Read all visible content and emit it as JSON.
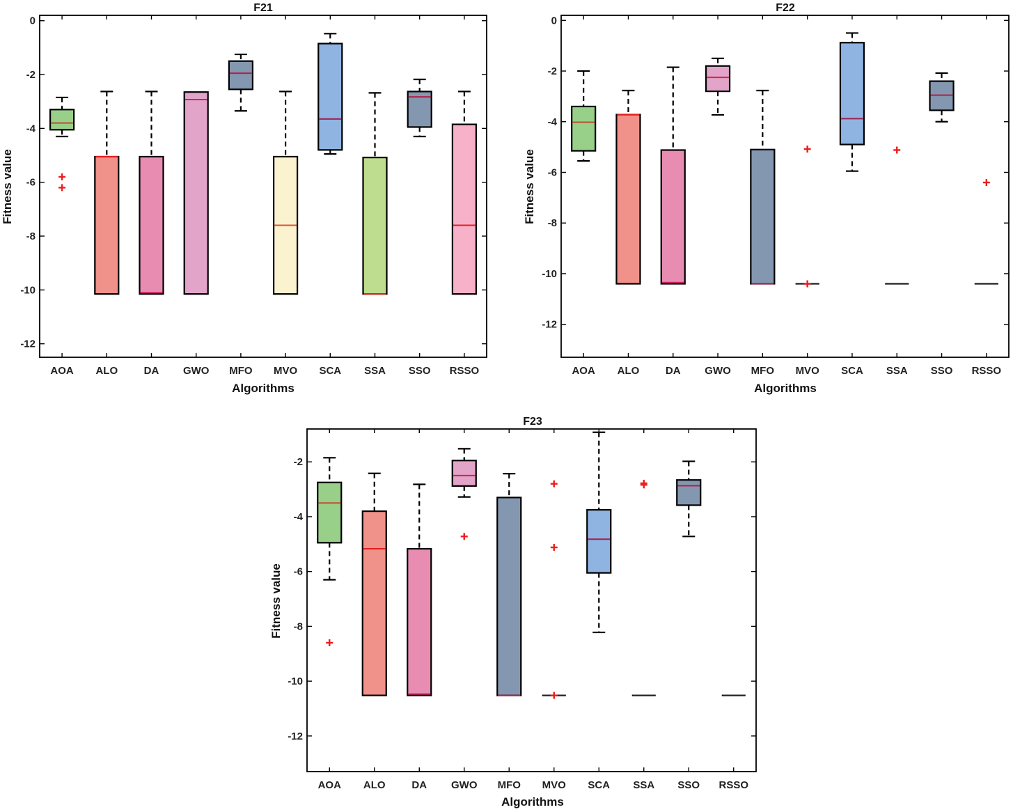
{
  "chart_data": [
    {
      "type": "boxplot",
      "title": "F21",
      "xlabel": "Algorithms",
      "ylabel": "Fitness value",
      "ylim": [
        -12.5,
        0.2
      ],
      "yticks": [
        0,
        -2,
        -4,
        -6,
        -8,
        -10,
        -12
      ],
      "categories": [
        "AOA",
        "ALO",
        "DA",
        "GWO",
        "MFO",
        "MVO",
        "SCA",
        "SSA",
        "SSO",
        "RSSO"
      ],
      "boxes": [
        {
          "whisker_low": -4.3,
          "q1": -4.05,
          "median": -3.8,
          "q3": -3.3,
          "whisker_high": -2.85,
          "outliers": [
            -5.8,
            -6.2
          ],
          "color": "#98d08a",
          "median_color": "#b8522a"
        },
        {
          "whisker_low": -10.15,
          "q1": -10.15,
          "median": -5.05,
          "q3": -5.05,
          "whisker_high": -2.63,
          "outliers": [],
          "color": "#f0918a",
          "median_color": "#e02020"
        },
        {
          "whisker_low": -10.15,
          "q1": -10.15,
          "median": -10.1,
          "q3": -5.05,
          "whisker_high": -2.63,
          "outliers": [],
          "color": "#e98cb2",
          "median_color": "#d0206a"
        },
        {
          "whisker_low": -10.15,
          "q1": -10.15,
          "median": -2.93,
          "q3": -2.65,
          "whisker_high": -2.65,
          "outliers": [],
          "color": "#e2a4c8",
          "median_color": "#e02040"
        },
        {
          "whisker_low": -3.35,
          "q1": -2.55,
          "median": -1.95,
          "q3": -1.5,
          "whisker_high": -1.25,
          "outliers": [],
          "color": "#8497b0",
          "median_color": "#b02048"
        },
        {
          "whisker_low": -10.15,
          "q1": -10.15,
          "median": -7.6,
          "q3": -5.05,
          "whisker_high": -2.63,
          "outliers": [],
          "color": "#fbf3cf",
          "median_color": "#e05030"
        },
        {
          "whisker_low": -4.95,
          "q1": -4.8,
          "median": -3.65,
          "q3": -0.85,
          "whisker_high": -0.48,
          "outliers": [],
          "color": "#8fb4e2",
          "median_color": "#a02050"
        },
        {
          "whisker_low": -10.15,
          "q1": -10.15,
          "median": -10.15,
          "q3": -5.08,
          "whisker_high": -2.68,
          "outliers": [],
          "color": "#bedd8e",
          "median_color": "#e03030"
        },
        {
          "whisker_low": -4.3,
          "q1": -3.95,
          "median": -2.83,
          "q3": -2.63,
          "whisker_high": -2.18,
          "outliers": [],
          "color": "#8497b0",
          "median_color": "#b02048"
        },
        {
          "whisker_low": -10.15,
          "q1": -10.15,
          "median": -7.6,
          "q3": -3.85,
          "whisker_high": -2.63,
          "outliers": [],
          "color": "#f7b1c9",
          "median_color": "#e02020"
        }
      ]
    },
    {
      "type": "boxplot",
      "title": "F22",
      "xlabel": "Algorithms",
      "ylabel": "Fitness value",
      "ylim": [
        -13.3,
        0.2
      ],
      "yticks": [
        0,
        -2,
        -4,
        -6,
        -8,
        -10,
        -12
      ],
      "categories": [
        "AOA",
        "ALO",
        "DA",
        "GWO",
        "MFO",
        "MVO",
        "SCA",
        "SSA",
        "SSO",
        "RSSO"
      ],
      "boxes": [
        {
          "whisker_low": -5.55,
          "q1": -5.15,
          "median": -4.02,
          "q3": -3.4,
          "whisker_high": -2.0,
          "outliers": [],
          "color": "#98d08a",
          "median_color": "#b8522a"
        },
        {
          "whisker_low": -10.4,
          "q1": -10.4,
          "median": -3.72,
          "q3": -3.72,
          "whisker_high": -2.77,
          "outliers": [],
          "color": "#f0918a",
          "median_color": "#e02020"
        },
        {
          "whisker_low": -10.4,
          "q1": -10.4,
          "median": -10.35,
          "q3": -5.12,
          "whisker_high": -1.85,
          "outliers": [],
          "color": "#e98cb2",
          "median_color": "#d0206a"
        },
        {
          "whisker_low": -3.73,
          "q1": -2.8,
          "median": -2.25,
          "q3": -1.8,
          "whisker_high": -1.5,
          "outliers": [],
          "color": "#e2a4c8",
          "median_color": "#e02040"
        },
        {
          "whisker_low": -10.4,
          "q1": -10.4,
          "median": -10.4,
          "q3": -5.1,
          "whisker_high": -2.77,
          "outliers": [],
          "color": "#8497b0",
          "median_color": "#b02048"
        },
        {
          "whisker_low": -10.4,
          "q1": -10.4,
          "median": -10.4,
          "q3": -10.4,
          "whisker_high": -10.4,
          "outliers": [
            -5.08,
            -10.4
          ],
          "color": "#fbf3cf",
          "median_color": "#222222"
        },
        {
          "whisker_low": -5.95,
          "q1": -4.9,
          "median": -3.88,
          "q3": -0.88,
          "whisker_high": -0.5,
          "outliers": [],
          "color": "#8fb4e2",
          "median_color": "#a02050"
        },
        {
          "whisker_low": -10.4,
          "q1": -10.4,
          "median": -10.4,
          "q3": -10.4,
          "whisker_high": -10.4,
          "outliers": [
            -5.12
          ],
          "color": "#bedd8e",
          "median_color": "#222222"
        },
        {
          "whisker_low": -4.0,
          "q1": -3.55,
          "median": -2.95,
          "q3": -2.4,
          "whisker_high": -2.08,
          "outliers": [],
          "color": "#8497b0",
          "median_color": "#b02048"
        },
        {
          "whisker_low": -10.4,
          "q1": -10.4,
          "median": -10.4,
          "q3": -10.4,
          "whisker_high": -10.4,
          "outliers": [
            -6.4
          ],
          "color": "#f7b1c9",
          "median_color": "#222222"
        }
      ]
    },
    {
      "type": "boxplot",
      "title": "F23",
      "xlabel": "Algorithms",
      "ylabel": "Fitness value",
      "ylim": [
        -13.3,
        -0.8
      ],
      "yticks": [
        -2,
        -4,
        -6,
        -8,
        -10,
        -12
      ],
      "categories": [
        "AOA",
        "ALO",
        "DA",
        "GWO",
        "MFO",
        "MVO",
        "SCA",
        "SSA",
        "SSO",
        "RSSO"
      ],
      "boxes": [
        {
          "whisker_low": -6.3,
          "q1": -4.95,
          "median": -3.5,
          "q3": -2.75,
          "whisker_high": -1.85,
          "outliers": [
            -8.6
          ],
          "color": "#98d08a",
          "median_color": "#b8522a"
        },
        {
          "whisker_low": -10.52,
          "q1": -10.52,
          "median": -5.17,
          "q3": -3.8,
          "whisker_high": -2.42,
          "outliers": [],
          "color": "#f0918a",
          "median_color": "#e02020"
        },
        {
          "whisker_low": -10.52,
          "q1": -10.52,
          "median": -10.47,
          "q3": -5.17,
          "whisker_high": -2.82,
          "outliers": [],
          "color": "#e98cb2",
          "median_color": "#d0206a"
        },
        {
          "whisker_low": -3.28,
          "q1": -2.88,
          "median": -2.5,
          "q3": -1.95,
          "whisker_high": -1.52,
          "outliers": [
            -4.72
          ],
          "color": "#e2a4c8",
          "median_color": "#e02040"
        },
        {
          "whisker_low": -10.52,
          "q1": -10.52,
          "median": -10.52,
          "q3": -3.3,
          "whisker_high": -2.43,
          "outliers": [],
          "color": "#8497b0",
          "median_color": "#b02048"
        },
        {
          "whisker_low": -10.52,
          "q1": -10.52,
          "median": -10.52,
          "q3": -10.52,
          "whisker_high": -10.52,
          "outliers": [
            -2.8,
            -5.12,
            -10.52
          ],
          "color": "#fbf3cf",
          "median_color": "#222222"
        },
        {
          "whisker_low": -8.22,
          "q1": -6.05,
          "median": -4.82,
          "q3": -3.75,
          "whisker_high": -0.92,
          "outliers": [],
          "color": "#8fb4e2",
          "median_color": "#a02050"
        },
        {
          "whisker_low": -10.52,
          "q1": -10.52,
          "median": -10.52,
          "q3": -10.52,
          "whisker_high": -10.52,
          "outliers": [
            -2.78,
            -2.84
          ],
          "color": "#bedd8e",
          "median_color": "#222222"
        },
        {
          "whisker_low": -4.72,
          "q1": -3.58,
          "median": -2.87,
          "q3": -2.66,
          "whisker_high": -1.98,
          "outliers": [],
          "color": "#8497b0",
          "median_color": "#b02048"
        },
        {
          "whisker_low": -10.52,
          "q1": -10.52,
          "median": -10.52,
          "q3": -10.52,
          "whisker_high": -10.52,
          "outliers": [],
          "color": "#f7b1c9",
          "median_color": "#222222"
        }
      ]
    }
  ]
}
